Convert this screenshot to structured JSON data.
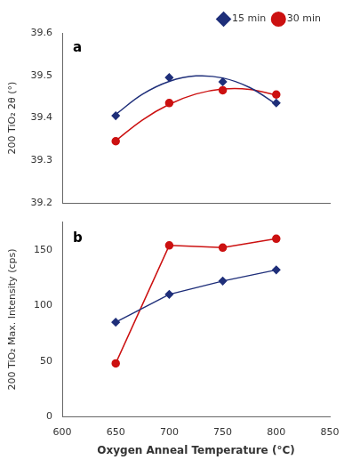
{
  "chart_data": [
    {
      "type": "scatter",
      "ylabel": "200 TiO₂ 2θ (°)",
      "annotation": "a",
      "xlim": [
        600,
        850
      ],
      "xticks": [
        600,
        650,
        700,
        750,
        800,
        850
      ],
      "ylim": [
        39.2,
        39.6
      ],
      "yticks": [
        39.2,
        39.3,
        39.4,
        39.5,
        39.6
      ],
      "tick_labels": "y",
      "grid": false,
      "legend": "upper right",
      "series": [
        {
          "type": "line",
          "color": "#1f2f7a",
          "x": [
            650,
            675,
            700,
            725,
            750,
            775,
            800
          ],
          "values": [
            39.408,
            39.45575,
            39.486,
            39.49875,
            39.494,
            39.47175,
            39.432
          ]
        },
        {
          "name": "15 min",
          "type": "scatter",
          "marker": "diamond",
          "color": "#1f2f7a",
          "x": [
            650,
            700,
            750,
            800
          ],
          "values": [
            39.405,
            39.495,
            39.485,
            39.435
          ]
        },
        {
          "type": "line",
          "color": "#cc1111",
          "x": [
            650,
            675,
            700,
            725,
            750,
            775,
            800
          ],
          "values": [
            39.346,
            39.39525,
            39.432,
            39.45625,
            39.468,
            39.46725,
            39.45375
          ]
        },
        {
          "name": "30 min",
          "type": "scatter",
          "marker": "circle",
          "color": "#cc1111",
          "x": [
            650,
            700,
            750,
            800
          ],
          "values": [
            39.345,
            39.435,
            39.465,
            39.455
          ]
        }
      ]
    },
    {
      "type": "line",
      "ylabel": "200 TiO₂ Max. Intensity (cps)",
      "xlabel": "Oxygen Anneal Temperature (°C)",
      "annotation": "b",
      "xlim": [
        600,
        850
      ],
      "xticks": [
        600,
        650,
        700,
        750,
        800,
        850
      ],
      "ylim": [
        0,
        175
      ],
      "yticks": [
        0,
        50,
        100,
        150
      ],
      "grid": false,
      "series": [
        {
          "type": "line",
          "marker": "diamond",
          "color": "#1f2f7a",
          "x": [
            650,
            700,
            750,
            800
          ],
          "values": [
            85,
            110,
            122,
            132
          ]
        },
        {
          "type": "line",
          "marker": "circle",
          "color": "#cc1111",
          "x": [
            650,
            700,
            750,
            800
          ],
          "values": [
            48,
            154,
            152,
            160
          ]
        }
      ]
    }
  ]
}
